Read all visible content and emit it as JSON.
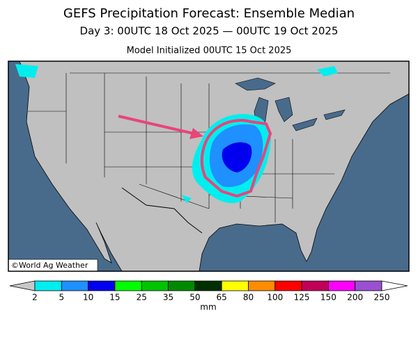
{
  "header": {
    "title": "GEFS Precipitation Forecast: Ensemble Median",
    "subtitle": "Day 3: 00UTC 18 Oct 2025 — 00UTC 19 Oct 2025",
    "initialized": "Model Initialized 00UTC 15 Oct 2025"
  },
  "map": {
    "credit": "©World Ag Weather"
  },
  "legend": {
    "ticks": [
      2,
      5,
      10,
      15,
      25,
      35,
      50,
      65,
      80,
      100,
      125,
      150,
      200,
      250
    ],
    "colors": [
      "#00eeee",
      "#1e90ff",
      "#0000ee",
      "#00ff00",
      "#00c400",
      "#008a00",
      "#003000",
      "#ffff00",
      "#ff8c00",
      "#ff0000",
      "#c0005a",
      "#ff00ff",
      "#9a50d0"
    ],
    "below_color": "#c8c8c8",
    "above_color": "#ffffff",
    "unit": "mm"
  }
}
